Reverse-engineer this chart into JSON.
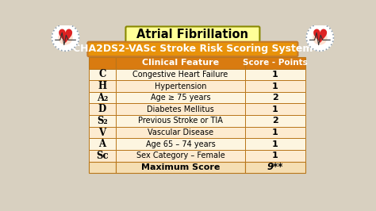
{
  "title": "Atrial Fibrillation",
  "subtitle": "CHA2DS2-VASc Stroke Risk Scoring System",
  "bg_color": "#d8d0c0",
  "title_bg": "#ffff99",
  "title_border": "#888800",
  "subtitle_bg": "#e8920a",
  "subtitle_border": "#c47a2a",
  "header_bg": "#d97b10",
  "header_text": "#ffffff",
  "row_bg_light": "#fdf5e0",
  "row_bg_dark": "#fdebd0",
  "footer_bg": "#f5deb3",
  "table_border": "#b8761a",
  "col_headers": [
    "Clinical Feature",
    "Score - Points"
  ],
  "rows": [
    [
      "C",
      "Congestive Heart Failure",
      "1"
    ],
    [
      "H",
      "Hypertension",
      "1"
    ],
    [
      "A₂",
      "Age ≥ 75 years",
      "2"
    ],
    [
      "D",
      "Diabetes Mellitus",
      "1"
    ],
    [
      "S₂",
      "Previous Stroke or TIA",
      "2"
    ],
    [
      "V",
      "Vascular Disease",
      "1"
    ],
    [
      "A",
      "Age 65 – 74 years",
      "1"
    ],
    [
      "Sc",
      "Sex Category – Female",
      "1"
    ]
  ],
  "footer_label": "Maximum Score",
  "footer_score": "9**",
  "footer_score_italic": true
}
